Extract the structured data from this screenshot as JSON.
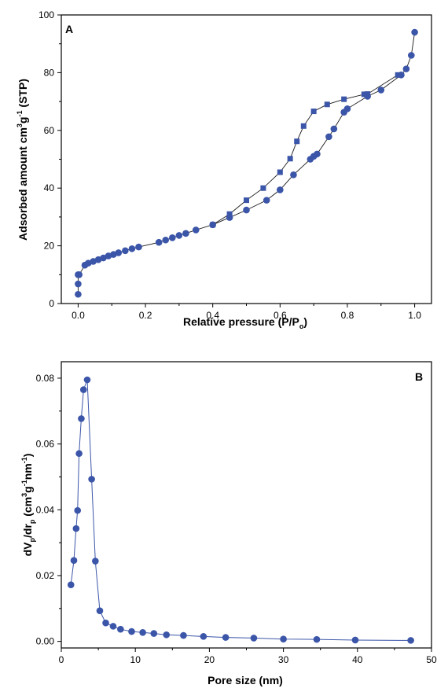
{
  "chart_data": [
    {
      "type": "scatter",
      "panel_label": "A",
      "xlabel": "Relative pressure (P/P",
      "xlabel_sub": "o",
      "xlabel_end": ")",
      "ylabel_parts": [
        "Adsorbed amount cm",
        "3",
        "g",
        "-1",
        " (STP)"
      ],
      "xlim": [
        -0.05,
        1.05
      ],
      "ylim": [
        0,
        100
      ],
      "xticks": [
        "0.0",
        "0.2",
        "0.4",
        "0.6",
        "0.8",
        "1.0"
      ],
      "yticks": [
        "0",
        "20",
        "40",
        "60",
        "80",
        "100"
      ],
      "marker_color": "#3b55a8",
      "series": [
        {
          "marker": "circle",
          "x": [
            0.0,
            0.0,
            0.0,
            0.003,
            0.02,
            0.03,
            0.045,
            0.06,
            0.075,
            0.09,
            0.105,
            0.12,
            0.14,
            0.16,
            0.18,
            0.24,
            0.26,
            0.28,
            0.3,
            0.32,
            0.35,
            0.4,
            0.45,
            0.5,
            0.56,
            0.6,
            0.64,
            0.69,
            0.7,
            0.71,
            0.745,
            0.76,
            0.79,
            0.8,
            0.86,
            0.9,
            0.96,
            0.975,
            0.99,
            1.0
          ],
          "y": [
            3.2,
            6.8,
            10.0,
            10.0,
            13.3,
            14.0,
            14.6,
            15.2,
            15.8,
            16.5,
            17.0,
            17.6,
            18.3,
            19.0,
            19.6,
            21.2,
            22.0,
            22.8,
            23.6,
            24.3,
            25.5,
            27.3,
            29.8,
            32.4,
            35.8,
            39.4,
            44.6,
            50.0,
            51.0,
            51.8,
            57.8,
            60.5,
            66.3,
            67.5,
            71.8,
            74.0,
            79.2,
            81.3,
            86.0,
            94.0
          ]
        },
        {
          "marker": "square",
          "x": [
            0.4,
            0.45,
            0.5,
            0.55,
            0.6,
            0.63,
            0.65,
            0.67,
            0.7,
            0.74,
            0.79,
            0.85,
            0.86,
            0.95
          ],
          "y": [
            27.3,
            31.0,
            35.8,
            40.0,
            45.5,
            50.2,
            56.2,
            61.5,
            66.6,
            69.0,
            70.8,
            72.5,
            72.6,
            79.2
          ]
        }
      ]
    },
    {
      "type": "line",
      "panel_label": "B",
      "xlabel": "Pore size (nm)",
      "ylabel_parts": [
        "dV",
        "p",
        "/dr",
        "p",
        " (cm",
        "3",
        "g",
        "-1",
        "nm",
        "-1",
        ")"
      ],
      "xlim": [
        0,
        50
      ],
      "ylim": [
        -0.002,
        0.085
      ],
      "xticks": [
        "0",
        "10",
        "20",
        "30",
        "40",
        "50"
      ],
      "yticks": [
        "0.00",
        "0.02",
        "0.04",
        "0.06",
        "0.08"
      ],
      "marker_color": "#3b55a8",
      "series": [
        {
          "marker": "circle",
          "x": [
            1.3,
            1.7,
            2.0,
            2.2,
            2.4,
            2.7,
            3.0,
            3.5,
            4.1,
            4.6,
            5.2,
            6.0,
            7.0,
            8.0,
            9.5,
            11.0,
            12.5,
            14.2,
            16.5,
            19.2,
            22.2,
            26.0,
            30.0,
            34.5,
            39.7,
            47.2
          ],
          "y": [
            0.0172,
            0.0246,
            0.0343,
            0.0398,
            0.0571,
            0.0677,
            0.0765,
            0.0795,
            0.0493,
            0.0244,
            0.0093,
            0.0056,
            0.0046,
            0.0037,
            0.003,
            0.0027,
            0.0024,
            0.002,
            0.0018,
            0.0015,
            0.0012,
            0.001,
            0.0007,
            0.0006,
            0.0004,
            0.0003
          ]
        }
      ]
    }
  ]
}
